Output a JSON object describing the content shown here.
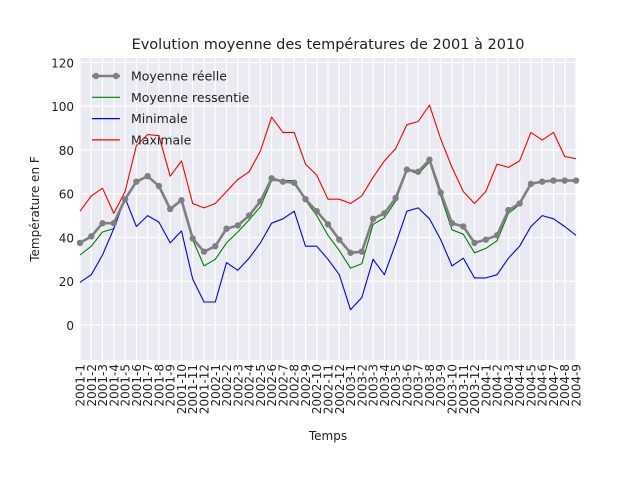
{
  "chart_data": {
    "type": "line",
    "title": "Evolution moyenne des températures de 2001 à 2010",
    "xlabel": "Temps",
    "ylabel": "Température en F",
    "ylim": [
      -16,
      122
    ],
    "yticks": [
      0,
      20,
      40,
      60,
      80,
      100,
      120
    ],
    "grid": true,
    "legend_position": "top-left",
    "categories": [
      "2001-1",
      "2001-2",
      "2001-3",
      "2001-4",
      "2001-5",
      "2001-6",
      "2001-7",
      "2001-8",
      "2001-9",
      "2001-10",
      "2001-11",
      "2001-12",
      "2002-1",
      "2002-2",
      "2002-3",
      "2002-4",
      "2002-5",
      "2002-6",
      "2002-7",
      "2002-8",
      "2002-9",
      "2002-10",
      "2002-11",
      "2002-12",
      "2003-1",
      "2003-2",
      "2003-3",
      "2003-4",
      "2003-5",
      "2003-6",
      "2003-7",
      "2003-8",
      "2003-9",
      "2003-10",
      "2003-11",
      "2003-12",
      "2004-1",
      "2004-2",
      "2004-3",
      "2004-4",
      "2004-5",
      "2004-6",
      "2004-7",
      "2004-8",
      "2004-9"
    ],
    "tick_labels": [
      "2001-1",
      "2001-2",
      "2001-3",
      "2001-4",
      "2001-5",
      "2001-6",
      "2001-7",
      "2001-8",
      "2001-9",
      "2001-10",
      "2001-11",
      "2001-12",
      "2002-1",
      "2002-2",
      "2002-3",
      "2002-4",
      "2002-5",
      "2002-6",
      "2002-7",
      "2002-8",
      "2002-9",
      "2002-10",
      "2002-11",
      "2002-12",
      "2003-1",
      "2003-2",
      "2003-3",
      "2003-4",
      "2003-5",
      "2003-6",
      "2003-7",
      "2003-8",
      "2003-9",
      "2003-10",
      "2003-11",
      "2003-12",
      "2004-1",
      "2004-2",
      "2004-3",
      "2004-4",
      "2004-5",
      "2004-6",
      "2004-7",
      "2004-8",
      "2004-9"
    ],
    "series": [
      {
        "name": "Moyenne réelle",
        "color": "#808080",
        "marker": true,
        "values": [
          37.5,
          40.5,
          46.5,
          46.5,
          57.5,
          65.5,
          68,
          63.5,
          53,
          57,
          39.5,
          33.5,
          36,
          44,
          45.5,
          50,
          56.5,
          67,
          65.5,
          65,
          57.5,
          52,
          46,
          39,
          33,
          33.5,
          48.5,
          51,
          58,
          71,
          70,
          75.5,
          60.5,
          46.5,
          45,
          37.5,
          39,
          41,
          52.5,
          55.5,
          64.5,
          65.5,
          66,
          66,
          66
        ]
      },
      {
        "name": "Moyenne ressentie",
        "color": "#008000",
        "marker": false,
        "values": [
          32,
          36,
          42.5,
          44,
          58,
          65,
          68,
          63.5,
          52,
          58,
          39,
          27,
          30,
          37.5,
          42.5,
          48,
          54,
          66,
          66,
          66,
          57,
          50,
          41,
          34,
          26,
          28,
          46,
          49,
          56.5,
          71,
          69,
          74.5,
          59,
          43.5,
          41.5,
          33,
          35,
          38.5,
          51,
          55,
          64,
          66,
          66,
          66,
          66
        ]
      },
      {
        "name": "Minimale",
        "color": "#0000ff",
        "marker": false,
        "values": [
          19.5,
          23,
          32,
          44,
          58,
          45,
          50,
          47,
          37.5,
          43,
          21,
          10.5,
          10.5,
          28.5,
          25,
          30.5,
          37.5,
          46.5,
          48.5,
          52,
          36,
          36,
          30,
          23,
          7,
          12.5,
          30,
          23,
          37,
          52,
          53.5,
          48.5,
          39,
          27,
          30.5,
          21.5,
          21.5,
          23,
          30.5,
          36,
          45,
          50,
          48.5,
          45,
          41
        ]
      },
      {
        "name": "Maximale",
        "color": "#ff0000",
        "marker": false,
        "values": [
          52,
          59,
          62.5,
          51,
          61,
          82,
          87,
          86.5,
          68,
          75,
          55.5,
          53.5,
          55.5,
          61,
          66.5,
          70,
          79.5,
          95,
          88,
          88,
          73.5,
          68.5,
          57.5,
          57.5,
          55.5,
          59,
          67.5,
          75,
          80.5,
          91.5,
          93,
          100.5,
          85,
          72,
          61,
          55.5,
          61,
          73.5,
          72,
          75,
          88,
          84.5,
          88,
          77,
          76
        ]
      }
    ]
  }
}
